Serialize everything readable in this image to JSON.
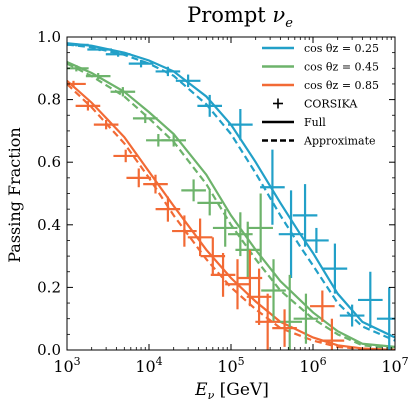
{
  "chart_data": {
    "type": "line",
    "title": "Prompt ν_e",
    "title_base": "Prompt ",
    "title_sym": "ν",
    "title_sub": "e",
    "xlabel_sym": "E",
    "xlabel_sub": "ν",
    "xlabel_unit": " [GeV]",
    "ylabel": "Passing Fraction",
    "xscale": "log",
    "xlim": [
      1000,
      10000000
    ],
    "ylim": [
      0.0,
      1.0
    ],
    "x_ticks": [
      {
        "mant": "10",
        "exp": "3",
        "value": 1000
      },
      {
        "mant": "10",
        "exp": "4",
        "value": 10000
      },
      {
        "mant": "10",
        "exp": "5",
        "value": 100000
      },
      {
        "mant": "10",
        "exp": "6",
        "value": 1000000
      },
      {
        "mant": "10",
        "exp": "7",
        "value": 10000000
      }
    ],
    "y_ticks": [
      "0.0",
      "0.2",
      "0.4",
      "0.6",
      "0.8",
      "1.0"
    ],
    "legend_position": "top-right",
    "legend": [
      {
        "label": "cos θz = 0.25",
        "color": "#22a0c8",
        "style": "line"
      },
      {
        "label": "cos θz = 0.45",
        "color": "#6db36b",
        "style": "line"
      },
      {
        "label": "cos θz = 0.85",
        "color": "#f26a35",
        "style": "line"
      },
      {
        "label": "CORSIKA",
        "color": "#000000",
        "style": "marker"
      },
      {
        "label": "Full",
        "color": "#000000",
        "style": "solid"
      },
      {
        "label": "Approximate",
        "color": "#000000",
        "style": "dashed"
      }
    ],
    "series": [
      {
        "color": "#22a0c8",
        "full": {
          "x": [
            1000,
            2000,
            5000,
            10000,
            20000,
            50000,
            100000,
            200000,
            400000,
            700000,
            1000000,
            2000000,
            4000000,
            10000000
          ],
          "y": [
            0.98,
            0.972,
            0.95,
            0.925,
            0.89,
            0.81,
            0.72,
            0.6,
            0.47,
            0.37,
            0.31,
            0.18,
            0.09,
            0.04
          ]
        },
        "approx": {
          "x": [
            1000,
            2000,
            5000,
            10000,
            20000,
            50000,
            100000,
            200000,
            400000,
            700000,
            1000000,
            2000000,
            4000000,
            10000000
          ],
          "y": [
            0.976,
            0.967,
            0.943,
            0.915,
            0.876,
            0.785,
            0.69,
            0.565,
            0.43,
            0.33,
            0.27,
            0.15,
            0.075,
            0.03
          ]
        },
        "corsika": {
          "x": [
            1300,
            2500,
            4200,
            8000,
            17000,
            30000,
            55000,
            130000,
            320000,
            540000,
            800000,
            1100000,
            1850000,
            3000000,
            5000000,
            8500000
          ],
          "y": [
            0.975,
            0.96,
            0.945,
            0.915,
            0.89,
            0.86,
            0.78,
            0.72,
            0.52,
            0.37,
            0.43,
            0.35,
            0.26,
            0.11,
            0.16,
            0.1
          ],
          "yerr": [
            0.005,
            0.005,
            0.008,
            0.012,
            0.015,
            0.02,
            0.035,
            0.05,
            0.12,
            0.14,
            0.1,
            0.04,
            0.08,
            0.035,
            0.09,
            0.1
          ],
          "xerr_dex": 0.15
        }
      },
      {
        "color": "#6db36b",
        "full": {
          "x": [
            1000,
            2000,
            5000,
            10000,
            20000,
            50000,
            100000,
            200000,
            400000,
            1000000,
            2000000,
            4000000,
            10000000
          ],
          "y": [
            0.92,
            0.885,
            0.825,
            0.76,
            0.69,
            0.56,
            0.43,
            0.32,
            0.22,
            0.12,
            0.06,
            0.02,
            0.01
          ]
        },
        "approx": {
          "x": [
            1000,
            2000,
            5000,
            10000,
            20000,
            50000,
            100000,
            200000,
            400000,
            1000000,
            2000000,
            4000000,
            10000000
          ],
          "y": [
            0.915,
            0.875,
            0.81,
            0.74,
            0.665,
            0.53,
            0.4,
            0.29,
            0.19,
            0.1,
            0.05,
            0.015,
            0.005
          ]
        },
        "corsika": {
          "x": [
            1300,
            2400,
            4800,
            9000,
            13000,
            20000,
            35000,
            55000,
            85000,
            130000,
            160000,
            230000,
            330000,
            520000,
            820000
          ],
          "y": [
            0.9,
            0.875,
            0.825,
            0.74,
            0.67,
            0.67,
            0.51,
            0.47,
            0.39,
            0.37,
            0.32,
            0.39,
            0.19,
            0.09,
            0.1
          ],
          "yerr": [
            0.01,
            0.01,
            0.015,
            0.015,
            0.02,
            0.02,
            0.035,
            0.04,
            0.06,
            0.07,
            0.09,
            0.11,
            0.1,
            0.15,
            0.08
          ],
          "xerr_dex": 0.15
        }
      },
      {
        "color": "#f26a35",
        "full": {
          "x": [
            1000,
            2000,
            5000,
            10000,
            20000,
            50000,
            100000,
            200000,
            400000,
            1000000,
            2000000,
            4000000,
            10000000
          ],
          "y": [
            0.86,
            0.79,
            0.68,
            0.57,
            0.46,
            0.32,
            0.23,
            0.155,
            0.09,
            0.04,
            0.015,
            0.005,
            0.0
          ]
        },
        "approx": {
          "x": [
            1000,
            2000,
            5000,
            10000,
            20000,
            50000,
            100000,
            200000,
            400000,
            1000000,
            2000000,
            4000000,
            10000000
          ],
          "y": [
            0.85,
            0.775,
            0.66,
            0.55,
            0.43,
            0.29,
            0.2,
            0.13,
            0.07,
            0.03,
            0.01,
            0.003,
            0.0
          ]
        },
        "corsika": {
          "x": [
            1200,
            1800,
            3000,
            5200,
            7500,
            12000,
            17000,
            27000,
            42000,
            60000,
            80000,
            120000,
            170000,
            220000,
            280000,
            450000,
            1300000,
            1700000
          ],
          "y": [
            0.85,
            0.78,
            0.72,
            0.62,
            0.55,
            0.53,
            0.45,
            0.38,
            0.36,
            0.3,
            0.24,
            0.21,
            0.23,
            0.17,
            0.09,
            0.07,
            0.14,
            0.03
          ],
          "yerr": [
            0.01,
            0.015,
            0.015,
            0.02,
            0.03,
            0.03,
            0.04,
            0.05,
            0.06,
            0.06,
            0.07,
            0.08,
            0.09,
            0.09,
            0.09,
            0.06,
            0.05,
            0.07
          ],
          "xerr_dex": 0.15
        }
      }
    ]
  }
}
